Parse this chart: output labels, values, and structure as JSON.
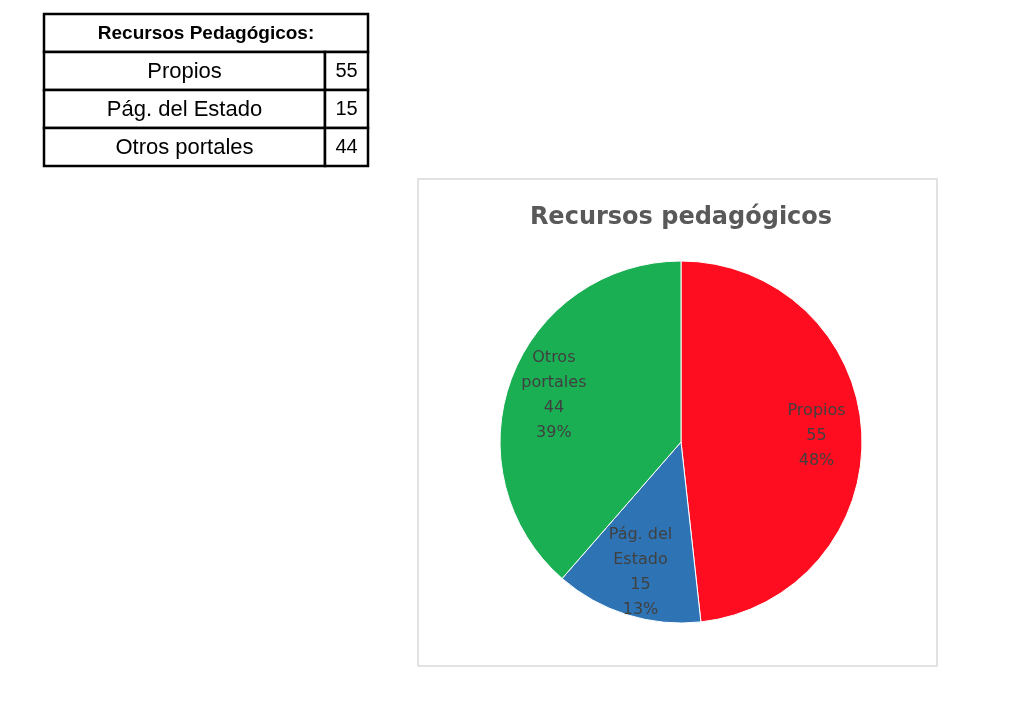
{
  "chart_data": {
    "type": "pie",
    "title": "Recursos pedagógicos",
    "categories": [
      "Propios",
      "Pág. del Estado",
      "Otros portales"
    ],
    "values": [
      55,
      15,
      44
    ],
    "colors": [
      "#fd0d1f",
      "#2e74b5",
      "#1baf54"
    ],
    "data_labels": true,
    "value_labels": [
      "55\n48%",
      "15\n13%",
      "44\n39%"
    ],
    "annotations": [
      "Recursos Pedagógicos:",
      "Propios",
      "55",
      "Pág. del Estado",
      "15",
      "Otros portales",
      "44"
    ]
  }
}
